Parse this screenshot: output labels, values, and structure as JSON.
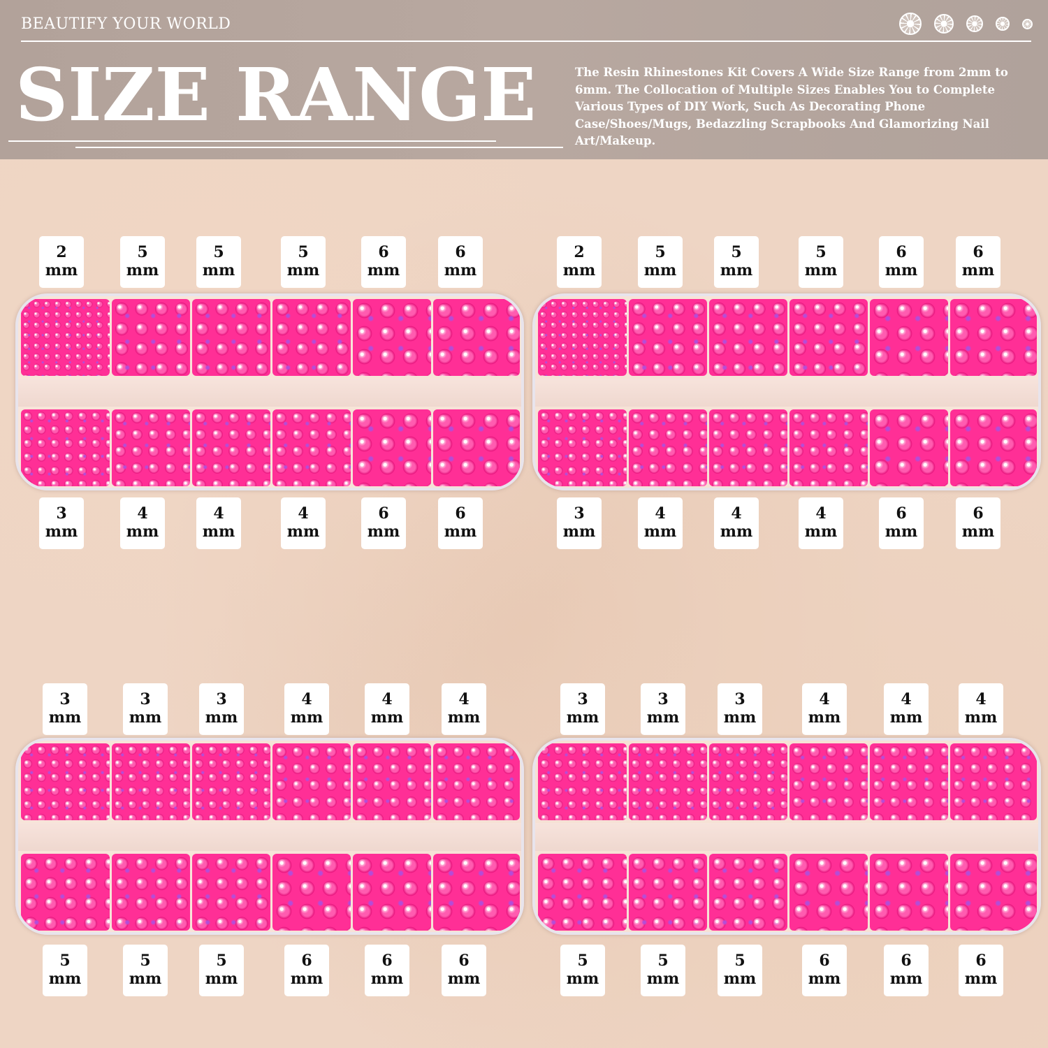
{
  "header": {
    "tagline": "BEAUTIFY YOUR WORLD",
    "title": "SIZE RANGE",
    "description": "The Resin Rhinestones Kit Covers A Wide Size Range from 2mm to 6mm. The Collocation of Multiple Sizes Enables You to Complete Various Types of DIY Work, Such As Decorating Phone Case/Shoes/Mugs, Bedazzling Scrapbooks And Glamorizing Nail Art/Makeup.",
    "icons": [
      "rhinestone-icon",
      "rhinestone-icon",
      "rhinestone-icon",
      "rhinestone-icon",
      "rhinestone-icon"
    ]
  },
  "colors": {
    "rhinestone": "#ff2f96",
    "header": "#b2a29a"
  },
  "unit": "mm",
  "trays": [
    {
      "top": [
        "2",
        "5",
        "5",
        "5",
        "6",
        "6"
      ],
      "bottom": [
        "3",
        "4",
        "4",
        "4",
        "6",
        "6"
      ]
    },
    {
      "top": [
        "2",
        "5",
        "5",
        "5",
        "6",
        "6"
      ],
      "bottom": [
        "3",
        "4",
        "4",
        "4",
        "6",
        "6"
      ]
    },
    {
      "top": [
        "3",
        "3",
        "3",
        "4",
        "4",
        "4"
      ],
      "bottom": [
        "5",
        "5",
        "5",
        "6",
        "6",
        "6"
      ]
    },
    {
      "top": [
        "3",
        "3",
        "3",
        "4",
        "4",
        "4"
      ],
      "bottom": [
        "5",
        "5",
        "5",
        "6",
        "6",
        "6"
      ]
    }
  ]
}
